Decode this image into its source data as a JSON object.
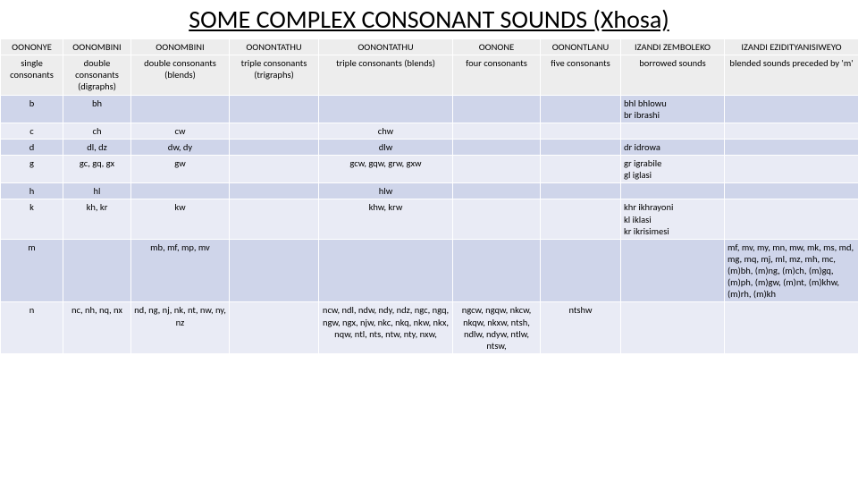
{
  "title": "SOME COMPLEX CONSONANT SOUNDS (Xhosa)",
  "colgroup_widths": [
    "70",
    "76",
    "110",
    "100",
    "150",
    "98",
    "90",
    "116",
    "150"
  ],
  "header_row1": [
    "OONONYE",
    "OONOMBINI",
    "OONOMBINI",
    "OONONTATHU",
    "OONONTATHU",
    "OONONE",
    "OONONTLANU",
    "IZANDI ZEMBOLEKO",
    "IZANDI EZIDITYANISIWEYO"
  ],
  "header_row2": [
    "single consonants",
    "double consonants (digraphs)",
    "double consonants (blends)",
    "triple consonants (trigraphs)",
    "triple consonants (blends)",
    "four consonants",
    "five consonants",
    "borrowed sounds",
    "blended sounds preceded by 'm'"
  ],
  "rows": [
    {
      "c": [
        "b",
        "bh",
        "",
        "",
        "",
        "",
        "",
        "bhl bhlowu\nbr  ibrashi",
        ""
      ]
    },
    {
      "c": [
        "c",
        "ch",
        "cw",
        "",
        "chw",
        "",
        "",
        "",
        ""
      ]
    },
    {
      "c": [
        "d",
        "dl, dz",
        "dw, dy",
        "",
        "dlw",
        "",
        "",
        "dr  idrowa",
        ""
      ]
    },
    {
      "c": [
        "g",
        "gc, gq, gx",
        "gw",
        "",
        "gcw, gqw, grw, gxw",
        "",
        "",
        "gr  igrabile\ngl  iglasi",
        ""
      ]
    },
    {
      "c": [
        "h",
        "hl",
        "",
        "",
        "hlw",
        "",
        "",
        "",
        ""
      ]
    },
    {
      "c": [
        "k",
        "kh, kr",
        "kw",
        "",
        "khw, krw",
        "",
        "",
        "khr ikhrayoni\nkl  iklasi\nkr ikrisimesi",
        ""
      ]
    },
    {
      "c": [
        "m",
        "",
        "mb, mf, mp, mv",
        "",
        "",
        "",
        "",
        "",
        "mf, mv, my, mn, mw, mk, ms, md, mg, mq, mj, ml, mz, mh, mc, (m)bh, (m)ng, (m)ch, (m)gq, (m)ph, (m)gw, (m)nt, (m)khw, (m)rh, (m)kh"
      ]
    },
    {
      "c": [
        "n",
        "nc, nh, nq, nx",
        "nd, ng, nj, nk, nt, nw, ny, nz",
        "",
        "ncw, ndl, ndw, ndy, ndz, ngc, ngq, ngw, ngx, njw, nkc, nkq, nkw, nkx, nqw, ntl, nts, ntw, nty, nxw,",
        "ngcw, ngqw, nkcw, nkqw, nkxw, ntsh, ndlw, ndyw, ntlw, ntsw,",
        "ntshw",
        "",
        ""
      ]
    }
  ],
  "colors": {
    "row_odd": "#cfd5ea",
    "row_even": "#e9ebf5",
    "header_bg": "#ededed",
    "border": "#ffffff"
  }
}
